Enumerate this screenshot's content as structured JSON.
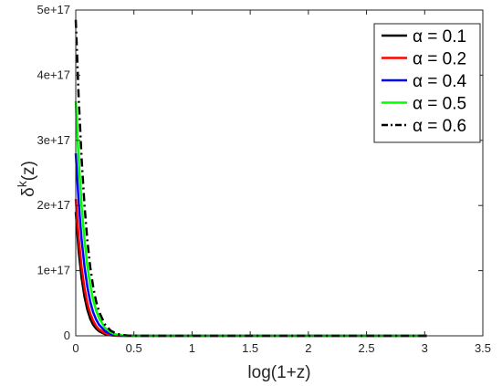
{
  "chart_data": {
    "type": "line",
    "xlabel": "log(1+z)",
    "ylabel_main": "δ",
    "ylabel_sup": "k",
    "ylabel_tail": "(z)",
    "xlim": [
      0,
      3.5
    ],
    "ylim": [
      0,
      5e+17
    ],
    "xticks": [
      0,
      0.5,
      1,
      1.5,
      2,
      2.5,
      3,
      3.5
    ],
    "xtick_labels": [
      "0",
      "0.5",
      "1",
      "1.5",
      "2",
      "2.5",
      "3",
      "3.5"
    ],
    "yticks": [
      0,
      1e+17,
      2e+17,
      3e+17,
      4e+17,
      5e+17
    ],
    "ytick_labels": [
      "0",
      "1e+17",
      "2e+17",
      "3e+17",
      "4e+17",
      "5e+17"
    ],
    "grid": false,
    "legend_position": "top-right",
    "x": [
      0,
      0.025,
      0.05,
      0.075,
      0.1,
      0.125,
      0.15,
      0.175,
      0.2,
      0.25,
      0.3,
      0.35,
      0.4,
      0.45,
      0.5,
      0.6,
      0.7,
      0.8,
      1.0,
      1.5,
      2.0,
      2.5,
      3.0,
      3.02
    ],
    "series": [
      {
        "name": "α = 0.1",
        "color": "#000000",
        "dash": "solid",
        "values": [
          1.9e+17,
          1.3e+17,
          8.9e+16,
          6e+16,
          4e+16,
          2.6e+16,
          1.7e+16,
          1.1e+16,
          7000000000000000.0,
          2600000000000000.0,
          800000000000000.0,
          200000000000000.0,
          40000000000000.0,
          0,
          0,
          0,
          0,
          0,
          0,
          0,
          0,
          0,
          0,
          0
        ]
      },
      {
        "name": "α = 0.2",
        "color": "#ff0000",
        "dash": "solid",
        "values": [
          2.1e+17,
          1.5e+17,
          1.05e+17,
          7.3e+16,
          5e+16,
          3.4e+16,
          2.3e+16,
          1.5e+16,
          1e+16,
          4000000000000000.0,
          1300000000000000.0,
          350000000000000.0,
          80000000000000.0,
          0,
          0,
          0,
          0,
          0,
          0,
          0,
          0,
          0,
          0,
          0
        ]
      },
      {
        "name": "α = 0.4",
        "color": "#0000ff",
        "dash": "solid",
        "values": [
          2.8e+17,
          2.05e+17,
          1.48e+17,
          1.06e+17,
          7.5e+16,
          5.2e+16,
          3.6e+16,
          2.5e+16,
          1.7e+16,
          7500000000000000.0,
          3000000000000000.0,
          1000000000000000.0,
          300000000000000.0,
          80000000000000.0,
          0,
          0,
          0,
          0,
          0,
          0,
          0,
          0,
          0,
          0
        ]
      },
      {
        "name": "α = 0.5",
        "color": "#00ff00",
        "dash": "solid",
        "values": [
          3.6e+17,
          2.7e+17,
          2e+17,
          1.47e+17,
          1.07e+17,
          7.7e+16,
          5.5e+16,
          3.9e+16,
          2.7e+16,
          1.25e+16,
          5200000000000000.0,
          2000000000000000.0,
          700000000000000.0,
          200000000000000.0,
          50000000000000.0,
          0,
          0,
          0,
          0,
          0,
          0,
          0,
          0,
          0
        ]
      },
      {
        "name": "α = 0.6",
        "color": "#000000",
        "dash": "dashdot",
        "values": [
          4.85e+17,
          3.65e+17,
          2.72e+17,
          2e+17,
          1.46e+17,
          1.05e+17,
          7.5e+16,
          5.3e+16,
          3.7e+16,
          1.75e+16,
          7800000000000000.0,
          3200000000000000.0,
          1200000000000000.0,
          400000000000000.0,
          120000000000000.0,
          0,
          0,
          0,
          0,
          0,
          0,
          0,
          0,
          0
        ]
      }
    ]
  }
}
